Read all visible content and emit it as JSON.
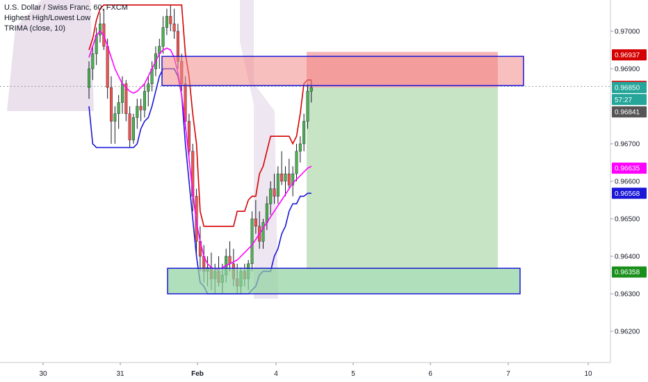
{
  "legend": {
    "symbol": "U.S. Dollar / Swiss Franc, 60, FXCM",
    "indicator1": "Highest High/Lowest Low",
    "indicator2": "TRIMA (close, 10)"
  },
  "colors": {
    "bull": "#4caf50",
    "bear": "#ef5350",
    "wick": "#131722",
    "highest_high": "#d50000",
    "lowest_low": "#1a17d6",
    "trima": "#ff00ff",
    "resistance_fill": "#f28b8b",
    "support_fill": "#8fd19e",
    "tp_zone": "#c4e3c2",
    "sl_zone": "#f4a7a7",
    "cloud": "#d9c8dd"
  },
  "chart_data": {
    "type": "candlestick",
    "title": "U.S. Dollar / Swiss Franc, 60, FXCM",
    "x_ticks": [
      "30",
      "31",
      "Feb",
      "4",
      "5",
      "6",
      "7",
      "10"
    ],
    "y_ticks": [
      "0.97000",
      "0.96900",
      "0.96700",
      "0.96600",
      "0.96500",
      "0.96400",
      "0.96300",
      "0.96200"
    ],
    "ylim": [
      0.9611,
      0.9709
    ],
    "price_tags": [
      {
        "label": "0.96937",
        "value": 0.96937,
        "color": "#d50000"
      },
      {
        "label": "0.96853",
        "value": 0.96853,
        "color": "#d50000"
      },
      {
        "label": "0.96850",
        "value": 0.9685,
        "color": "#26a69a"
      },
      {
        "label": "57:27",
        "value": 0.96818,
        "color": "#26a69a"
      },
      {
        "label": "0.96841",
        "value": 0.96785,
        "color": "#555555"
      },
      {
        "label": "0.96635",
        "value": 0.96635,
        "color": "#ff00ff"
      },
      {
        "label": "0.96568",
        "value": 0.96568,
        "color": "#1a17d6"
      },
      {
        "label": "0.96358",
        "value": 0.96358,
        "color": "#1b8f1b"
      }
    ],
    "zones": {
      "resistance": [
        0.96855,
        0.96933
      ],
      "support": [
        0.963,
        0.96368
      ],
      "short_stop": [
        0.9685,
        0.96945
      ],
      "short_target": [
        0.96365,
        0.9685
      ]
    },
    "candles": [
      [
        0.9685,
        0.9692,
        0.9682,
        0.969
      ],
      [
        0.969,
        0.9696,
        0.9687,
        0.9694
      ],
      [
        0.9694,
        0.9701,
        0.9691,
        0.9699
      ],
      [
        0.9699,
        0.9705,
        0.9697,
        0.9702
      ],
      [
        0.9702,
        0.9706,
        0.9695,
        0.9696
      ],
      [
        0.9696,
        0.9698,
        0.9682,
        0.9685
      ],
      [
        0.9685,
        0.9688,
        0.967,
        0.9676
      ],
      [
        0.9676,
        0.968,
        0.967,
        0.9678
      ],
      [
        0.9678,
        0.9683,
        0.9674,
        0.9681
      ],
      [
        0.9681,
        0.9688,
        0.9678,
        0.9686
      ],
      [
        0.9686,
        0.9687,
        0.9676,
        0.9678
      ],
      [
        0.9678,
        0.968,
        0.9669,
        0.9671
      ],
      [
        0.9671,
        0.9678,
        0.967,
        0.9677
      ],
      [
        0.9677,
        0.9682,
        0.9674,
        0.968
      ],
      [
        0.968,
        0.9682,
        0.9676,
        0.9679
      ],
      [
        0.9679,
        0.9686,
        0.9677,
        0.9684
      ],
      [
        0.9684,
        0.9688,
        0.968,
        0.9686
      ],
      [
        0.9686,
        0.9692,
        0.9684,
        0.969
      ],
      [
        0.969,
        0.9696,
        0.9688,
        0.9694
      ],
      [
        0.9694,
        0.9698,
        0.969,
        0.9696
      ],
      [
        0.9696,
        0.9704,
        0.9694,
        0.9701
      ],
      [
        0.9701,
        0.9706,
        0.9699,
        0.9704
      ],
      [
        0.9704,
        0.9707,
        0.97,
        0.9702
      ],
      [
        0.9702,
        0.9706,
        0.9698,
        0.97
      ],
      [
        0.97,
        0.9702,
        0.969,
        0.9692
      ],
      [
        0.9692,
        0.9694,
        0.9684,
        0.9686
      ],
      [
        0.9686,
        0.9688,
        0.9674,
        0.9676
      ],
      [
        0.9676,
        0.9678,
        0.9665,
        0.9668
      ],
      [
        0.9668,
        0.967,
        0.9652,
        0.9656
      ],
      [
        0.9656,
        0.9658,
        0.964,
        0.9644
      ],
      [
        0.9644,
        0.9648,
        0.9636,
        0.964
      ],
      [
        0.964,
        0.9643,
        0.9633,
        0.9636
      ],
      [
        0.9636,
        0.964,
        0.9632,
        0.9637
      ],
      [
        0.9637,
        0.9641,
        0.9631,
        0.9634
      ],
      [
        0.9634,
        0.9638,
        0.963,
        0.9636
      ],
      [
        0.9636,
        0.964,
        0.9632,
        0.9633
      ],
      [
        0.9633,
        0.9638,
        0.963,
        0.9635
      ],
      [
        0.9635,
        0.9642,
        0.9633,
        0.964
      ],
      [
        0.964,
        0.9644,
        0.9636,
        0.9638
      ],
      [
        0.9638,
        0.9642,
        0.9632,
        0.9634
      ],
      [
        0.9634,
        0.9638,
        0.963,
        0.9632
      ],
      [
        0.9632,
        0.9637,
        0.963,
        0.9636
      ],
      [
        0.9636,
        0.9638,
        0.9632,
        0.9634
      ],
      [
        0.9634,
        0.9639,
        0.9631,
        0.9638
      ],
      [
        0.9638,
        0.9652,
        0.9636,
        0.965
      ],
      [
        0.965,
        0.9655,
        0.9646,
        0.9648
      ],
      [
        0.9648,
        0.9652,
        0.9642,
        0.9644
      ],
      [
        0.9644,
        0.965,
        0.9642,
        0.9649
      ],
      [
        0.9649,
        0.9656,
        0.9647,
        0.9654
      ],
      [
        0.9654,
        0.966,
        0.9651,
        0.9658
      ],
      [
        0.9658,
        0.9662,
        0.9654,
        0.9656
      ],
      [
        0.9656,
        0.9664,
        0.9654,
        0.9662
      ],
      [
        0.9662,
        0.9668,
        0.9659,
        0.966
      ],
      [
        0.966,
        0.9664,
        0.9656,
        0.9662
      ],
      [
        0.9662,
        0.9666,
        0.9658,
        0.9659
      ],
      [
        0.9659,
        0.9664,
        0.9656,
        0.9662
      ],
      [
        0.9662,
        0.967,
        0.966,
        0.9668
      ],
      [
        0.9668,
        0.9672,
        0.9665,
        0.967
      ],
      [
        0.967,
        0.9678,
        0.9668,
        0.9676
      ],
      [
        0.9676,
        0.9686,
        0.9674,
        0.9684
      ],
      [
        0.9684,
        0.9687,
        0.9681,
        0.9685
      ]
    ],
    "highest_high": [
      0.9695,
      0.9698,
      0.9703,
      0.9706,
      0.9707,
      0.9707,
      0.9707,
      0.9707,
      0.9707,
      0.9707,
      0.9707,
      0.9707,
      0.9707,
      0.9707,
      0.9707,
      0.9707,
      0.9707,
      0.9707,
      0.9707,
      0.9707,
      0.9707,
      0.9707,
      0.9707,
      0.9707,
      0.9707,
      0.9707,
      0.9694,
      0.9688,
      0.9678,
      0.967,
      0.9652,
      0.9648,
      0.9648,
      0.9648,
      0.9648,
      0.9648,
      0.9648,
      0.9648,
      0.9648,
      0.9648,
      0.9652,
      0.9652,
      0.9652,
      0.9655,
      0.9656,
      0.9656,
      0.9662,
      0.9664,
      0.9668,
      0.9672,
      0.9672,
      0.9672,
      0.9672,
      0.9672,
      0.9672,
      0.967,
      0.9672,
      0.9678,
      0.9686,
      0.9687,
      0.9687
    ],
    "lowest_low": [
      0.968,
      0.967,
      0.9669,
      0.9669,
      0.9669,
      0.9669,
      0.9669,
      0.9669,
      0.9669,
      0.9669,
      0.9669,
      0.9669,
      0.9669,
      0.967,
      0.9674,
      0.9676,
      0.9677,
      0.968,
      0.9684,
      0.9688,
      0.969,
      0.969,
      0.969,
      0.969,
      0.9688,
      0.9683,
      0.967,
      0.966,
      0.965,
      0.964,
      0.9633,
      0.9632,
      0.963,
      0.963,
      0.963,
      0.963,
      0.963,
      0.963,
      0.963,
      0.963,
      0.963,
      0.963,
      0.963,
      0.963,
      0.9631,
      0.9632,
      0.9635,
      0.9636,
      0.9636,
      0.9636,
      0.964,
      0.9642,
      0.9646,
      0.9648,
      0.9652,
      0.9654,
      0.9654,
      0.9656,
      0.9656,
      0.96568,
      0.96568
    ],
    "trima": [
      0.9693,
      0.9696,
      0.9699,
      0.97,
      0.9699,
      0.9696,
      0.9693,
      0.969,
      0.9688,
      0.9686,
      0.9685,
      0.9684,
      0.96835,
      0.9684,
      0.9685,
      0.9686,
      0.9688,
      0.969,
      0.9692,
      0.9694,
      0.9695,
      0.96955,
      0.9695,
      0.9693,
      0.9689,
      0.9683,
      0.9675,
      0.9666,
      0.9657,
      0.9649,
      0.9644,
      0.964,
      0.9638,
      0.9637,
      0.96365,
      0.96365,
      0.9637,
      0.96375,
      0.9638,
      0.96385,
      0.9639,
      0.964,
      0.9641,
      0.9642,
      0.9643,
      0.96445,
      0.9646,
      0.96475,
      0.9649,
      0.96505,
      0.9652,
      0.96535,
      0.9655,
      0.96565,
      0.9658,
      0.96595,
      0.96605,
      0.96615,
      0.96625,
      0.96635,
      0.9664
    ]
  }
}
